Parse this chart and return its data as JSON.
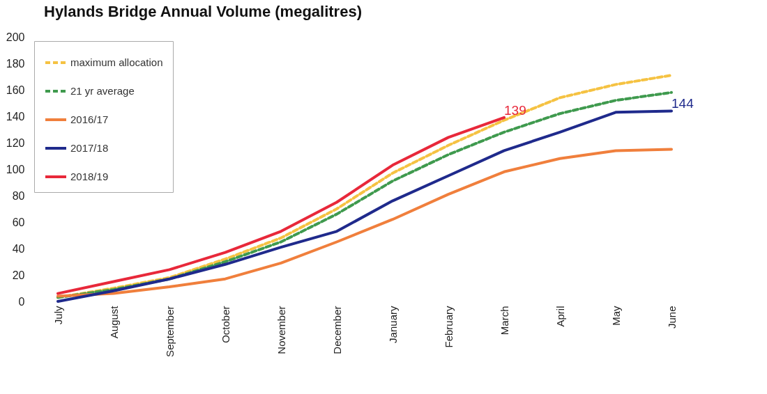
{
  "chart_data": {
    "type": "line",
    "title": "Hylands Bridge Annual Volume (megalitres)",
    "categories": [
      "July",
      "August",
      "September",
      "October",
      "November",
      "December",
      "January",
      "February",
      "March",
      "April",
      "May",
      "June"
    ],
    "series": [
      {
        "name": "maximum allocation",
        "color": "#f5c242",
        "line_style": "dashed",
        "values": [
          3,
          10,
          18,
          32,
          48,
          70,
          97,
          118,
          137,
          154,
          164,
          171
        ]
      },
      {
        "name": "21 yr average",
        "color": "#3f9a4e",
        "line_style": "dashed",
        "values": [
          3,
          9,
          17,
          30,
          45,
          66,
          91,
          111,
          128,
          142,
          152,
          158
        ]
      },
      {
        "name": "2016/17",
        "color": "#f07f3c",
        "line_style": "solid",
        "values": [
          4,
          6,
          11,
          17,
          29,
          45,
          62,
          81,
          98,
          108,
          114,
          115
        ]
      },
      {
        "name": "2017/18",
        "color": "#1f2a8c",
        "line_style": "solid",
        "values": [
          0,
          8,
          17,
          28,
          41,
          53,
          76,
          95,
          114,
          128,
          143,
          144
        ]
      },
      {
        "name": "2018/19",
        "color": "#e8283a",
        "line_style": "solid",
        "values": [
          6,
          15,
          24,
          37,
          53,
          75,
          103,
          124,
          139,
          null,
          null,
          null
        ]
      }
    ],
    "ylim": [
      0,
      200
    ],
    "yticks": [
      0,
      20,
      40,
      60,
      80,
      100,
      120,
      140,
      160,
      180,
      200
    ],
    "grid": false,
    "legend": "top left",
    "annotations": [
      {
        "text": "139",
        "x": "March",
        "y": 139
      },
      {
        "text": "144",
        "x": "June",
        "y": 144
      }
    ]
  }
}
